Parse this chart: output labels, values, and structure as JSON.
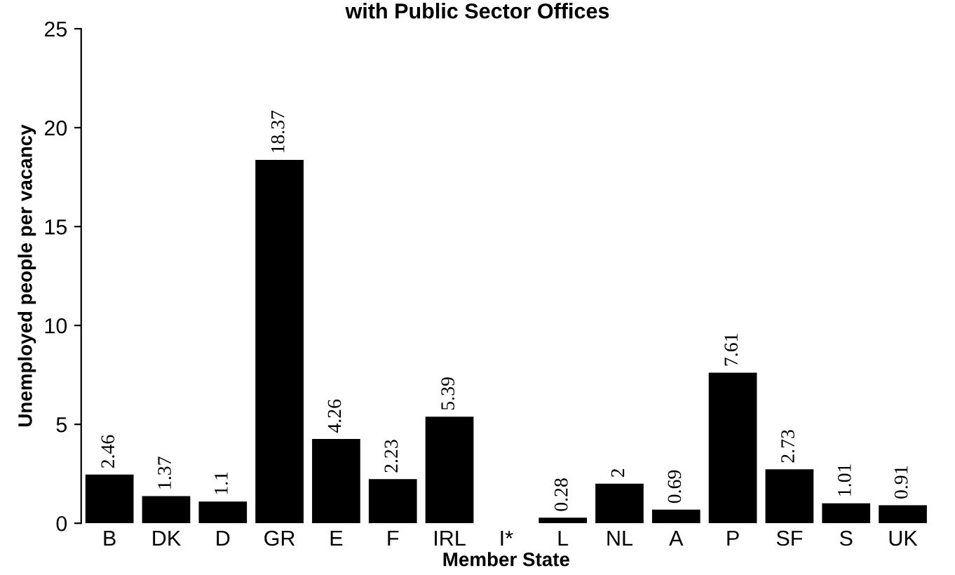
{
  "chart_data": {
    "type": "bar",
    "title": "with Public Sector Offices",
    "xlabel": "Member State",
    "ylabel": "Unemployed people per vacancy",
    "categories": [
      "B",
      "DK",
      "D",
      "GR",
      "E",
      "F",
      "IRL",
      "I*",
      "L",
      "NL",
      "A",
      "P",
      "SF",
      "S",
      "UK"
    ],
    "values": [
      2.46,
      1.37,
      1.1,
      18.37,
      4.26,
      2.23,
      5.39,
      null,
      0.28,
      2,
      0.69,
      7.61,
      2.73,
      1.01,
      0.91
    ],
    "value_labels": [
      "2.46",
      "1.37",
      "1.1",
      "18.37",
      "4.26",
      "2.23",
      "5.39",
      null,
      "0.28",
      "2",
      "0.69",
      "7.61",
      "2.73",
      "1.01",
      "0.91"
    ],
    "color": "#000000",
    "ylim": [
      0,
      25
    ],
    "yticks": [
      0,
      5,
      10,
      15,
      20,
      25
    ],
    "grid": false
  }
}
